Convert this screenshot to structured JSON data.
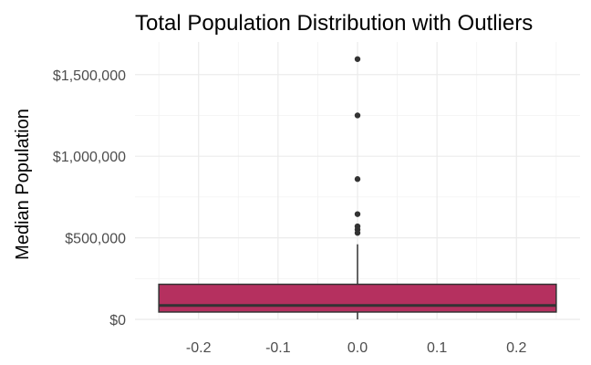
{
  "chart_data": {
    "type": "boxplot",
    "title": "Total Population Distribution with Outliers",
    "xlabel": "",
    "ylabel": "Median Population",
    "xlim": [
      -0.28,
      0.28
    ],
    "ylim": [
      0,
      1700000
    ],
    "x_ticks": [
      -0.2,
      -0.1,
      0.0,
      0.1,
      0.2
    ],
    "x_tick_labels": [
      "-0.2",
      "-0.1",
      "0.0",
      "0.1",
      "0.2"
    ],
    "y_ticks": [
      0,
      500000,
      1000000,
      1500000
    ],
    "y_tick_labels": [
      "$0",
      "$500,000",
      "$1,000,000",
      "$1,500,000"
    ],
    "grid": true,
    "box": {
      "x": 0.0,
      "x_range": [
        -0.25,
        0.25
      ],
      "whisker_low": 0,
      "q1": 45000,
      "median": 85000,
      "q3": 215000,
      "whisker_high": 460000,
      "fill": "#b5305f",
      "outline": "#333333"
    },
    "outliers": [
      1595000,
      1250000,
      860000,
      645000,
      570000,
      550000,
      530000
    ]
  }
}
